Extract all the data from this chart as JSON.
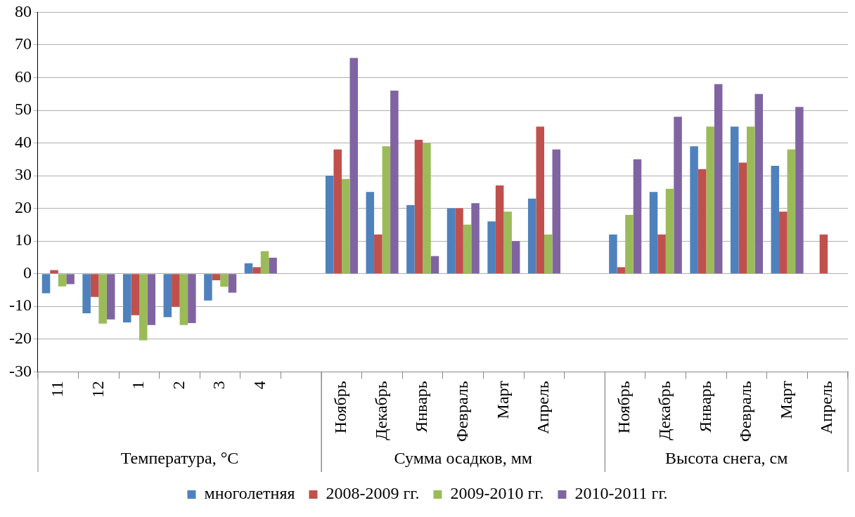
{
  "chart_data": {
    "type": "bar",
    "categories": [
      "11",
      "12",
      "1",
      "2",
      "3",
      "4",
      null,
      "Ноябрь",
      "Декабрь",
      "Январь",
      "Февраль",
      "Март",
      "Апрель",
      null,
      "Ноябрь",
      "Декабрь",
      "Январь",
      "Февраль",
      "Март",
      "Апрель"
    ],
    "series": [
      {
        "name": "многолетняя",
        "color": "#4f81bd",
        "values": [
          -6,
          -12.1,
          -14.9,
          -13.3,
          -8.2,
          3.2,
          null,
          30,
          25,
          21,
          20,
          16,
          23,
          null,
          12,
          25,
          39,
          45,
          33,
          null
        ]
      },
      {
        "name": "2008-2009 гг.",
        "color": "#c0504d",
        "values": [
          1.1,
          -7.1,
          -12.7,
          -10.1,
          -2,
          2,
          null,
          38,
          12,
          41,
          20,
          27,
          45,
          null,
          2,
          12,
          32,
          34,
          19,
          12
        ]
      },
      {
        "name": "2009-2010 гг.",
        "color": "#9bbb59",
        "values": [
          -3.9,
          -15.3,
          -20.4,
          -15.7,
          -4,
          6.9,
          null,
          29,
          39,
          40,
          15,
          19,
          12,
          null,
          18,
          26,
          45,
          45,
          38,
          null
        ]
      },
      {
        "name": "2010-2011 гг.",
        "color": "#8064a2",
        "values": [
          -3.2,
          -14,
          -15.7,
          -15.1,
          -5.8,
          4.9,
          null,
          66,
          56,
          5.4,
          21.6,
          10,
          38,
          null,
          35,
          48,
          58,
          55,
          51,
          null
        ]
      }
    ],
    "ylim": [
      -30,
      80
    ],
    "yticks": [
      -30,
      -20,
      -10,
      0,
      10,
      20,
      30,
      40,
      50,
      60,
      70,
      80
    ],
    "grid": "y",
    "legend": "bottom",
    "annotations": [
      "Температура, °C",
      "Сумма осадков, мм",
      "Высота снега, см"
    ]
  }
}
